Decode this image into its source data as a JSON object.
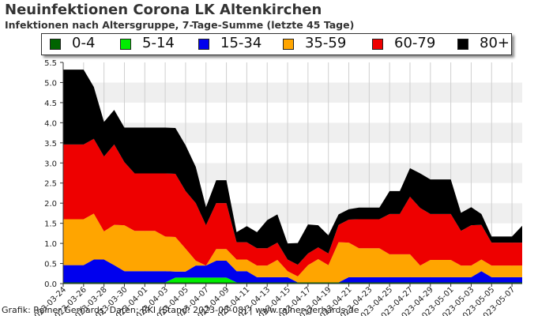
{
  "title": "Neuinfektionen Corona LK Altenkirchen",
  "subtitle": "Infektionen nach Altersgruppe, 7-Tage-Summe (letzte 45 Tage)",
  "footer": "Grafik: Rainer Gerhards, Daten: RKI (Stand: 2023-05-08) | www.rainer-gerhards.de",
  "legend": [
    {
      "label": "0-4",
      "color": "#006400"
    },
    {
      "label": "5-14",
      "color": "#00ee00"
    },
    {
      "label": "15-34",
      "color": "#0000ee"
    },
    {
      "label": "35-59",
      "color": "#ffa500"
    },
    {
      "label": "60-79",
      "color": "#ee0000"
    },
    {
      "label": "80+",
      "color": "#000000"
    }
  ],
  "chart_data": {
    "type": "area",
    "stacked": true,
    "title": "Neuinfektionen Corona LK Altenkirchen",
    "subtitle": "Infektionen nach Altersgruppe, 7-Tage-Summe (letzte 45 Tage)",
    "xlabel": "",
    "ylabel": "",
    "ylim": [
      0,
      5.5
    ],
    "yticks": [
      "0.0",
      "0.5",
      "1.0",
      "1.5",
      "2.0",
      "2.5",
      "3.0",
      "3.5",
      "4.0",
      "4.5",
      "5.0",
      "5.5"
    ],
    "grid": "horizontal bands",
    "legend_position": "top",
    "x": [
      "2023-03-24",
      "2023-03-25",
      "2023-03-26",
      "2023-03-27",
      "2023-03-28",
      "2023-03-29",
      "2023-03-30",
      "2023-03-31",
      "2023-04-01",
      "2023-04-02",
      "2023-04-03",
      "2023-04-04",
      "2023-04-05",
      "2023-04-06",
      "2023-04-07",
      "2023-04-08",
      "2023-04-09",
      "2023-04-10",
      "2023-04-11",
      "2023-04-12",
      "2023-04-13",
      "2023-04-14",
      "2023-04-15",
      "2023-04-16",
      "2023-04-17",
      "2023-04-18",
      "2023-04-19",
      "2023-04-20",
      "2023-04-21",
      "2023-04-22",
      "2023-04-23",
      "2023-04-24",
      "2023-04-25",
      "2023-04-26",
      "2023-04-27",
      "2023-04-28",
      "2023-04-29",
      "2023-04-30",
      "2023-05-01",
      "2023-05-02",
      "2023-05-03",
      "2023-05-04",
      "2023-05-05",
      "2023-05-06",
      "2023-05-07",
      "2023-05-08"
    ],
    "xticks": [
      "2023-03-24",
      "2023-03-26",
      "2023-03-28",
      "2023-03-30",
      "2023-04-01",
      "2023-04-03",
      "2023-04-05",
      "2023-04-07",
      "2023-04-09",
      "2023-04-11",
      "2023-04-13",
      "2023-04-15",
      "2023-04-17",
      "2023-04-19",
      "2023-04-21",
      "2023-04-23",
      "2023-04-25",
      "2023-04-27",
      "2023-04-29",
      "2023-05-01",
      "2023-05-03",
      "2023-05-05",
      "2023-05-07"
    ],
    "series": [
      {
        "name": "0-4",
        "color": "#006400",
        "values": [
          0.03,
          0.03,
          0.03,
          0.03,
          0.03,
          0.03,
          0.03,
          0.03,
          0.03,
          0.03,
          0.03,
          0.03,
          0.03,
          0.03,
          0.03,
          0.03,
          0.03,
          0.03,
          0.03,
          0.03,
          0.03,
          0.03,
          0.03,
          0.03,
          0.03,
          0.03,
          0.03,
          0.03,
          0.03,
          0.03,
          0.03,
          0.03,
          0.03,
          0.03,
          0.03,
          0.03,
          0.03,
          0.03,
          0.03,
          0.03,
          0.03,
          0.03,
          0.03,
          0.03,
          0.03,
          0.03
        ]
      },
      {
        "name": "5-14",
        "color": "#00ee00",
        "values": [
          0,
          0,
          0,
          0,
          0,
          0,
          0,
          0,
          0,
          0,
          0,
          0.12,
          0.12,
          0.12,
          0.12,
          0.12,
          0.12,
          0,
          0,
          0,
          0,
          0,
          0,
          0,
          0,
          0,
          0,
          0,
          0,
          0,
          0,
          0,
          0,
          0,
          0,
          0,
          0,
          0,
          0,
          0,
          0,
          0,
          0,
          0,
          0,
          0
        ]
      },
      {
        "name": "15-34",
        "color": "#0000ee",
        "values": [
          0.43,
          0.43,
          0.43,
          0.57,
          0.57,
          0.43,
          0.28,
          0.28,
          0.28,
          0.28,
          0.28,
          0.15,
          0.15,
          0.3,
          0.3,
          0.42,
          0.42,
          0.28,
          0.28,
          0.13,
          0.13,
          0.13,
          0.13,
          0,
          0,
          0,
          0,
          0,
          0.13,
          0.13,
          0.13,
          0.13,
          0.13,
          0.13,
          0.13,
          0.13,
          0.13,
          0.13,
          0.13,
          0.13,
          0.13,
          0.28,
          0.13,
          0.13,
          0.13,
          0.13
        ]
      },
      {
        "name": "35-59",
        "color": "#ffa500",
        "values": [
          1.14,
          1.14,
          1.14,
          1.14,
          0.7,
          1.0,
          1.14,
          1.0,
          1.0,
          1.0,
          0.86,
          0.86,
          0.57,
          0.12,
          0,
          0.29,
          0.29,
          0.29,
          0.29,
          0.29,
          0.29,
          0.43,
          0.15,
          0.15,
          0.43,
          0.58,
          0.43,
          1.0,
          0.86,
          0.72,
          0.72,
          0.72,
          0.57,
          0.57,
          0.57,
          0.29,
          0.43,
          0.43,
          0.43,
          0.29,
          0.29,
          0.29,
          0.29,
          0.29,
          0.29,
          0.29
        ]
      },
      {
        "name": "60-79",
        "color": "#ee0000",
        "values": [
          1.86,
          1.86,
          1.86,
          1.86,
          1.86,
          2.0,
          1.57,
          1.43,
          1.43,
          1.43,
          1.57,
          1.57,
          1.43,
          1.43,
          1.0,
          1.14,
          1.14,
          0.43,
          0.43,
          0.43,
          0.43,
          0.43,
          0.29,
          0.29,
          0.29,
          0.29,
          0.29,
          0.43,
          0.57,
          0.72,
          0.72,
          0.72,
          1.0,
          1.0,
          1.43,
          1.43,
          1.14,
          1.14,
          1.14,
          0.86,
          1.0,
          0.86,
          0.57,
          0.57,
          0.57,
          0.57
        ]
      },
      {
        "name": "80+",
        "color": "#000000",
        "values": [
          1.86,
          1.86,
          1.86,
          1.29,
          0.86,
          0.86,
          0.86,
          1.14,
          1.14,
          1.14,
          1.14,
          1.14,
          1.14,
          0.9,
          0.45,
          0.57,
          0.57,
          0.25,
          0.4,
          0.4,
          0.7,
          0.7,
          0.4,
          0.54,
          0.72,
          0.55,
          0.45,
          0.26,
          0.26,
          0.29,
          0.29,
          0.29,
          0.57,
          0.57,
          0.71,
          0.86,
          0.86,
          0.86,
          0.86,
          0.45,
          0.45,
          0.27,
          0.15,
          0.15,
          0.15,
          0.42
        ]
      }
    ]
  }
}
